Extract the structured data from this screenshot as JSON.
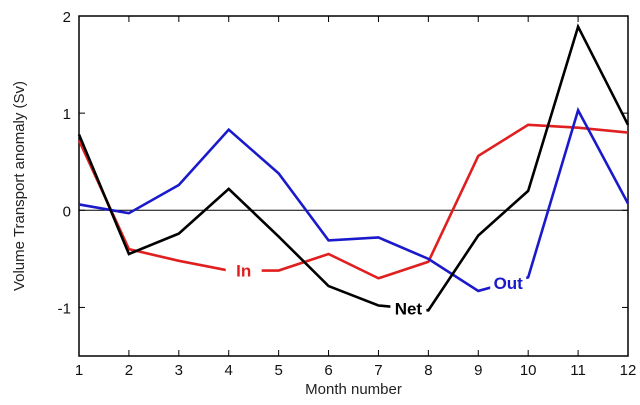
{
  "chart_data": {
    "type": "line",
    "title": "",
    "xlabel": "Month number",
    "ylabel": "Volume Transport anomaly (Sv)",
    "xlim": [
      1,
      12
    ],
    "ylim": [
      -1.5,
      2
    ],
    "xticks": [
      "1",
      "2",
      "3",
      "4",
      "5",
      "6",
      "7",
      "8",
      "9",
      "10",
      "11",
      "12"
    ],
    "yticks": [
      "-1",
      "0",
      "1",
      "2"
    ],
    "grid": false,
    "zero_line": true,
    "x": [
      1,
      2,
      3,
      4,
      5,
      6,
      7,
      8,
      9,
      10,
      11,
      12
    ],
    "series": [
      {
        "name": "In",
        "color": "#e02020",
        "label_at": 4.3,
        "values": [
          0.72,
          -0.4,
          -0.52,
          -0.62,
          -0.62,
          -0.45,
          -0.7,
          -0.53,
          0.56,
          0.88,
          0.85,
          0.8
        ]
      },
      {
        "name": "Out",
        "color": "#1a1acc",
        "label_at": 9.6,
        "values": [
          0.06,
          -0.03,
          0.26,
          0.83,
          0.38,
          -0.31,
          -0.28,
          -0.5,
          -0.83,
          -0.69,
          1.03,
          0.07
        ]
      },
      {
        "name": "Net",
        "color": "#000000",
        "label_at": 7.6,
        "values": [
          0.78,
          -0.45,
          -0.24,
          0.22,
          -0.27,
          -0.78,
          -0.98,
          -1.03,
          -0.26,
          0.2,
          1.89,
          0.88
        ]
      }
    ]
  }
}
